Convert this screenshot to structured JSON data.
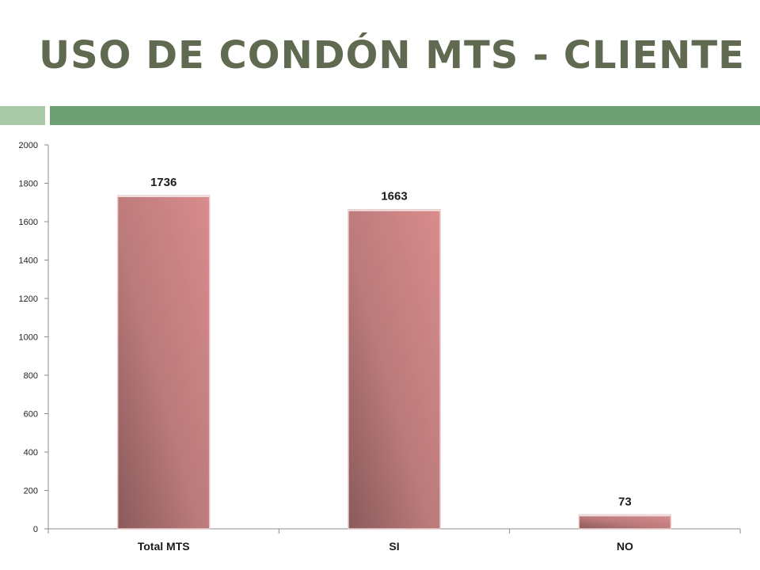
{
  "slide": {
    "title": "USO DE CONDÓN MTS - CLIENTE"
  },
  "colors": {
    "title": "#5f6a50",
    "band_light": "#aac9a9",
    "band_dark": "#6fa074",
    "bar_light": "#d98c8c",
    "bar_dark": "#8a5a5a"
  },
  "chart_data": {
    "type": "bar",
    "title": "",
    "xlabel": "",
    "ylabel": "",
    "categories": [
      "Total MTS",
      "SI",
      "NO"
    ],
    "values": [
      1736,
      1663,
      73
    ],
    "data_labels": [
      "1736",
      "1663",
      "73"
    ],
    "ylim": [
      0,
      2000
    ],
    "yticks": [
      0,
      200,
      400,
      600,
      800,
      1000,
      1200,
      1400,
      1600,
      1800,
      2000
    ],
    "grid": false,
    "legend": "none"
  }
}
